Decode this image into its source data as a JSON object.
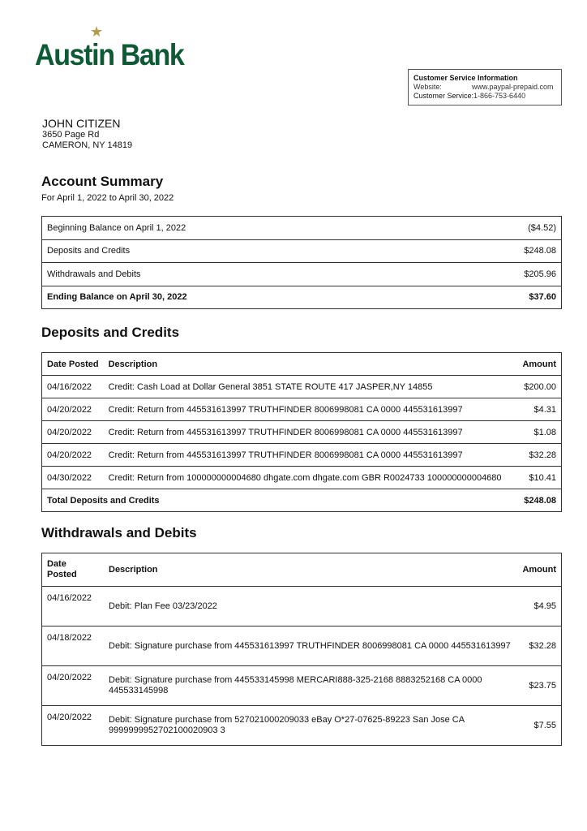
{
  "bank": {
    "name": "Austin Bank",
    "colors": {
      "green": "#0e5a34",
      "star": "#b79a4a"
    }
  },
  "customer_service": {
    "title": "Customer Service Information",
    "website_label": "Website:",
    "website": "www.paypal-prepaid.com",
    "phone_label": "Customer Service:",
    "phone": "1-866-753-6440"
  },
  "customer": {
    "name": "JOHN CITIZEN",
    "street": "3650 Page Rd",
    "city": "CAMERON, NY 14819"
  },
  "summary": {
    "title": "Account Summary",
    "period": "For April  1, 2022 to April 30, 2022",
    "rows": [
      {
        "label": "Beginning Balance on April 1, 2022",
        "amount": "($4.52)"
      },
      {
        "label": "Deposits and Credits",
        "amount": "$248.08"
      },
      {
        "label": "Withdrawals and Debits",
        "amount": "$205.96"
      },
      {
        "label": "Ending Balance on April 30, 2022",
        "amount": "$37.60"
      }
    ]
  },
  "deposits": {
    "title": "Deposits and Credits",
    "headers": {
      "date": "Date Posted",
      "description": "Description",
      "amount": "Amount"
    },
    "rows": [
      {
        "date": "04/16/2022",
        "description": "Credit: Cash Load at Dollar General 3851 STATE ROUTE 417 JASPER,NY 14855",
        "amount": "$200.00"
      },
      {
        "date": "04/20/2022",
        "description": "Credit: Return from 445531613997 TRUTHFINDER 8006998081 CA 0000 445531613997",
        "amount": "$4.31"
      },
      {
        "date": "04/20/2022",
        "description": "Credit: Return from 445531613997 TRUTHFINDER 8006998081 CA 0000 445531613997",
        "amount": "$1.08"
      },
      {
        "date": "04/20/2022",
        "description": "Credit: Return from 445531613997 TRUTHFINDER 8006998081 CA 0000 445531613997",
        "amount": "$32.28"
      },
      {
        "date": "04/30/2022",
        "description": "Credit: Return from 100000000004680 dhgate.com dhgate.com GBR R0024733 100000000004680",
        "amount": "$10.41"
      }
    ],
    "total_label": "Total Deposits and Credits",
    "total": "$248.08"
  },
  "withdrawals": {
    "title": "Withdrawals and Debits",
    "headers": {
      "date_line1": "Date",
      "date_line2": "Posted",
      "description": "Description",
      "amount": "Amount"
    },
    "rows": [
      {
        "date": "04/16/2022",
        "description": "Debit: Plan Fee 03/23/2022",
        "amount": "$4.95"
      },
      {
        "date": "04/18/2022",
        "description": "Debit: Signature purchase from 445531613997 TRUTHFINDER 8006998081 CA 0000 445531613997",
        "amount": "$32.28"
      },
      {
        "date": "04/20/2022",
        "description": "Debit: Signature purchase from 445533145998 MERCARI888-325-2168 8883252168 CA 0000 445533145998",
        "amount": "$23.75"
      },
      {
        "date": "04/20/2022",
        "description": "Debit: Signature purchase from 527021000209033 eBay O*27-07625-89223 San Jose CA 9999999952702100020903 3",
        "amount": "$7.55"
      }
    ]
  }
}
